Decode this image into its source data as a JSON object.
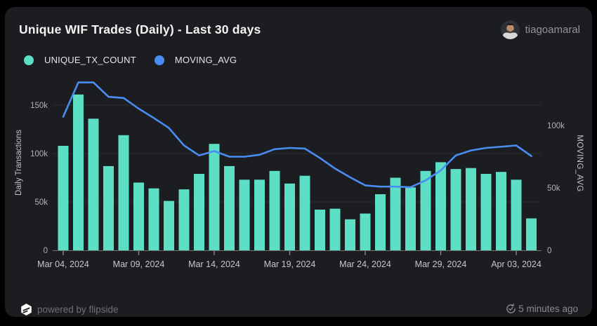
{
  "header": {
    "title": "Unique WIF Trades (Daily) - Last 30 days",
    "username": "tiagoamaral"
  },
  "legend": [
    {
      "label": "UNIQUE_TX_COUNT",
      "color": "#5cdfc5"
    },
    {
      "label": "MOVING_AVG",
      "color": "#4a8df2"
    }
  ],
  "footer": {
    "powered_by": "powered by flipside",
    "updated": "5 minutes ago"
  },
  "chart_data": {
    "type": "bar",
    "title": "Unique WIF Trades (Daily) - Last 30 days",
    "categories": [
      "Mar 04, 2024",
      "Mar 05, 2024",
      "Mar 06, 2024",
      "Mar 07, 2024",
      "Mar 08, 2024",
      "Mar 09, 2024",
      "Mar 10, 2024",
      "Mar 11, 2024",
      "Mar 12, 2024",
      "Mar 13, 2024",
      "Mar 14, 2024",
      "Mar 15, 2024",
      "Mar 16, 2024",
      "Mar 17, 2024",
      "Mar 18, 2024",
      "Mar 19, 2024",
      "Mar 20, 2024",
      "Mar 21, 2024",
      "Mar 22, 2024",
      "Mar 23, 2024",
      "Mar 24, 2024",
      "Mar 25, 2024",
      "Mar 26, 2024",
      "Mar 27, 2024",
      "Mar 28, 2024",
      "Mar 29, 2024",
      "Mar 30, 2024",
      "Mar 31, 2024",
      "Apr 01, 2024",
      "Apr 02, 2024",
      "Apr 03, 2024",
      "Apr 04, 2024"
    ],
    "series": [
      {
        "name": "UNIQUE_TX_COUNT",
        "type": "bar",
        "axis": "left",
        "color": "#5cdfc5",
        "values": [
          108000,
          161000,
          136000,
          87000,
          119000,
          70000,
          64000,
          51000,
          63000,
          79000,
          110000,
          87000,
          73000,
          73000,
          82000,
          69000,
          77000,
          42000,
          43000,
          32000,
          38000,
          58000,
          75000,
          65000,
          82000,
          91000,
          84000,
          85000,
          79000,
          81000,
          73000,
          33000
        ]
      },
      {
        "name": "MOVING_AVG",
        "type": "line",
        "axis": "right",
        "color": "#4a8df2",
        "values": [
          107000,
          134500,
          134500,
          123000,
          122000,
          113500,
          106000,
          98000,
          84000,
          76000,
          79500,
          75000,
          75000,
          76500,
          81000,
          82000,
          81500,
          74000,
          65500,
          58500,
          52000,
          51000,
          51000,
          50500,
          56000,
          64000,
          76000,
          80000,
          82000,
          83000,
          84000,
          75500
        ]
      }
    ],
    "left_axis": {
      "label": "Daily Transactions",
      "ticks": [
        {
          "label": "0",
          "value": 0
        },
        {
          "label": "50k",
          "value": 50000
        },
        {
          "label": "100k",
          "value": 100000
        },
        {
          "label": "150k",
          "value": 150000
        }
      ],
      "range": [
        0,
        175000
      ],
      "grid_values": [
        50000,
        100000,
        150000
      ]
    },
    "right_axis": {
      "label": "MOVING_AVG",
      "ticks": [
        {
          "label": "0",
          "value": 0
        },
        {
          "label": "50k",
          "value": 50000
        },
        {
          "label": "100k",
          "value": 100000
        }
      ],
      "range": [
        0,
        136000
      ]
    },
    "x_ticks": [
      {
        "index": 0,
        "label": "Mar 04, 2024"
      },
      {
        "index": 5,
        "label": "Mar 09, 2024"
      },
      {
        "index": 10,
        "label": "Mar 14, 2024"
      },
      {
        "index": 15,
        "label": "Mar 19, 2024"
      },
      {
        "index": 20,
        "label": "Mar 24, 2024"
      },
      {
        "index": 25,
        "label": "Mar 29, 2024"
      },
      {
        "index": 30,
        "label": "Apr 03, 2024"
      }
    ],
    "legend_position": "top-left",
    "grid": true
  }
}
